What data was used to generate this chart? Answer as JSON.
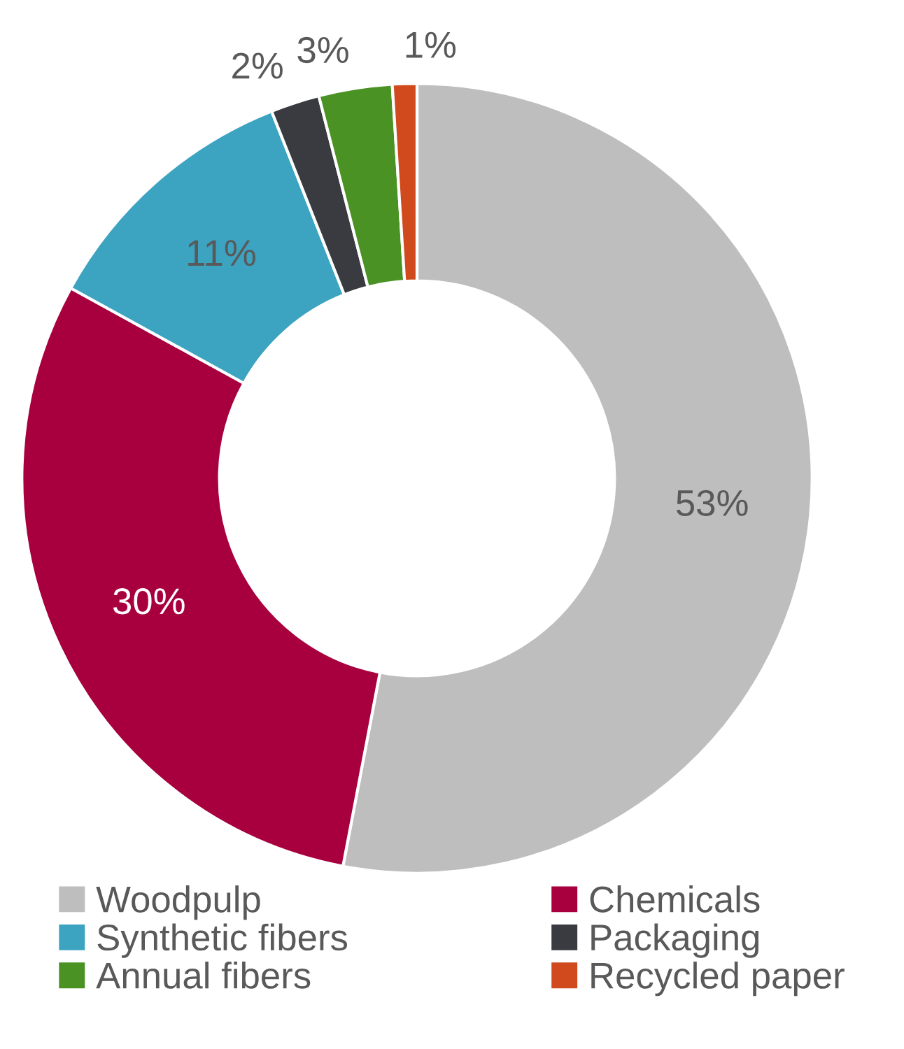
{
  "chart_data": {
    "type": "donut",
    "categories": [
      "Woodpulp",
      "Chemicals",
      "Synthetic fibers",
      "Packaging",
      "Annual fibers",
      "Recycled paper"
    ],
    "values": [
      53,
      30,
      11,
      2,
      3,
      1
    ],
    "colors": [
      "#bfbebf",
      "#a8003f",
      "#3ca3c1",
      "#3a3b40",
      "#4b9224",
      "#d04a1e"
    ],
    "value_labels": [
      "53%",
      "30%",
      "11%",
      "2%",
      "3%",
      "1%"
    ],
    "legend": "bottom"
  }
}
